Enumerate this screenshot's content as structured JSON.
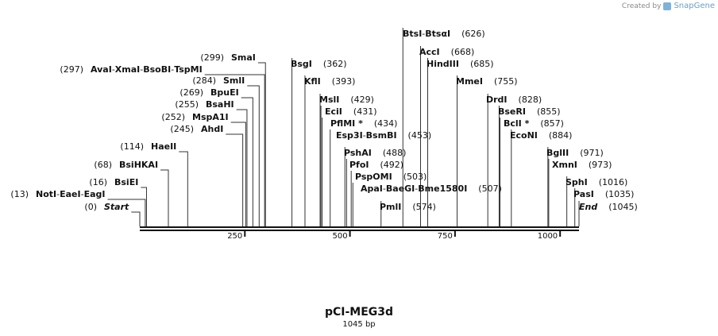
{
  "brand": {
    "created_by": "Created by",
    "app": "SnapGene"
  },
  "map": {
    "title": "pCI-MEG3d",
    "length_label": "1045 bp",
    "length": 1045
  },
  "axis_ticks": [
    {
      "value": 250,
      "label": "250"
    },
    {
      "value": 500,
      "label": "500"
    },
    {
      "value": 750,
      "label": "750"
    },
    {
      "value": 1000,
      "label": "1000"
    }
  ],
  "features": [
    {
      "names": [
        "Start"
      ],
      "pos_label": "(0)",
      "site": 0,
      "italic": true
    },
    {
      "names": [
        "NotI",
        "EaeI",
        "EagI"
      ],
      "pos_label": "(13)",
      "site": 13
    },
    {
      "names": [
        "BsiEI"
      ],
      "pos_label": "(16)",
      "site": 16
    },
    {
      "names": [
        "BsiHKAI"
      ],
      "pos_label": "(68)",
      "site": 68
    },
    {
      "names": [
        "HaeII"
      ],
      "pos_label": "(114)",
      "site": 114
    },
    {
      "names": [
        "AhdI"
      ],
      "pos_label": "(245)",
      "site": 245
    },
    {
      "names": [
        "MspA1I"
      ],
      "pos_label": "(252)",
      "site": 252
    },
    {
      "names": [
        "BsaHI"
      ],
      "pos_label": "(255)",
      "site": 255
    },
    {
      "names": [
        "BpuEI"
      ],
      "pos_label": "(269)",
      "site": 269
    },
    {
      "names": [
        "SmlI"
      ],
      "pos_label": "(284)",
      "site": 284
    },
    {
      "names": [
        "AvaI",
        "XmaI",
        "BsoBI",
        "TspMI"
      ],
      "pos_label": "(297)",
      "site": 297
    },
    {
      "names": [
        "SmaI"
      ],
      "pos_label": "(299)",
      "site": 299
    },
    {
      "names": [
        "BsgI"
      ],
      "pos_label": "(362)",
      "site": 362
    },
    {
      "names": [
        "KflI"
      ],
      "pos_label": "(393)",
      "site": 393
    },
    {
      "names": [
        "MslI"
      ],
      "pos_label": "(429)",
      "site": 429
    },
    {
      "names": [
        "EciI"
      ],
      "pos_label": "(431)",
      "site": 431
    },
    {
      "names": [
        "PflMI *"
      ],
      "pos_label": "(434)",
      "site": 434
    },
    {
      "names": [
        "Esp3I",
        "BsmBI"
      ],
      "pos_label": "(453)",
      "site": 453
    },
    {
      "names": [
        "PshAI"
      ],
      "pos_label": "(488)",
      "site": 488
    },
    {
      "names": [
        "PfoI"
      ],
      "pos_label": "(492)",
      "site": 492
    },
    {
      "names": [
        "PspOMI"
      ],
      "pos_label": "(503)",
      "site": 503
    },
    {
      "names": [
        "ApaI",
        "BaeGI",
        "Bme1580I"
      ],
      "pos_label": "(507)",
      "site": 507
    },
    {
      "names": [
        "PmlI"
      ],
      "pos_label": "(574)",
      "site": 574
    },
    {
      "names": [
        "BtsI",
        "BtsαI"
      ],
      "pos_label": "(626)",
      "site": 626
    },
    {
      "names": [
        "AccI"
      ],
      "pos_label": "(668)",
      "site": 668
    },
    {
      "names": [
        "HindIII"
      ],
      "pos_label": "(685)",
      "site": 685
    },
    {
      "names": [
        "MmeI"
      ],
      "pos_label": "(755)",
      "site": 755
    },
    {
      "names": [
        "DrdI"
      ],
      "pos_label": "(828)",
      "site": 828
    },
    {
      "names": [
        "BseRI"
      ],
      "pos_label": "(855)",
      "site": 855
    },
    {
      "names": [
        "BclI *"
      ],
      "pos_label": "(857)",
      "site": 857
    },
    {
      "names": [
        "EcoNI"
      ],
      "pos_label": "(884)",
      "site": 884
    },
    {
      "names": [
        "BglII"
      ],
      "pos_label": "(971)",
      "site": 971
    },
    {
      "names": [
        "XmnI"
      ],
      "pos_label": "(973)",
      "site": 973
    },
    {
      "names": [
        "SphI"
      ],
      "pos_label": "(1016)",
      "site": 1016
    },
    {
      "names": [
        "PasI"
      ],
      "pos_label": "(1035)",
      "site": 1035
    },
    {
      "names": [
        "End"
      ],
      "pos_label": "(1045)",
      "site": 1045,
      "italic": true
    }
  ]
}
